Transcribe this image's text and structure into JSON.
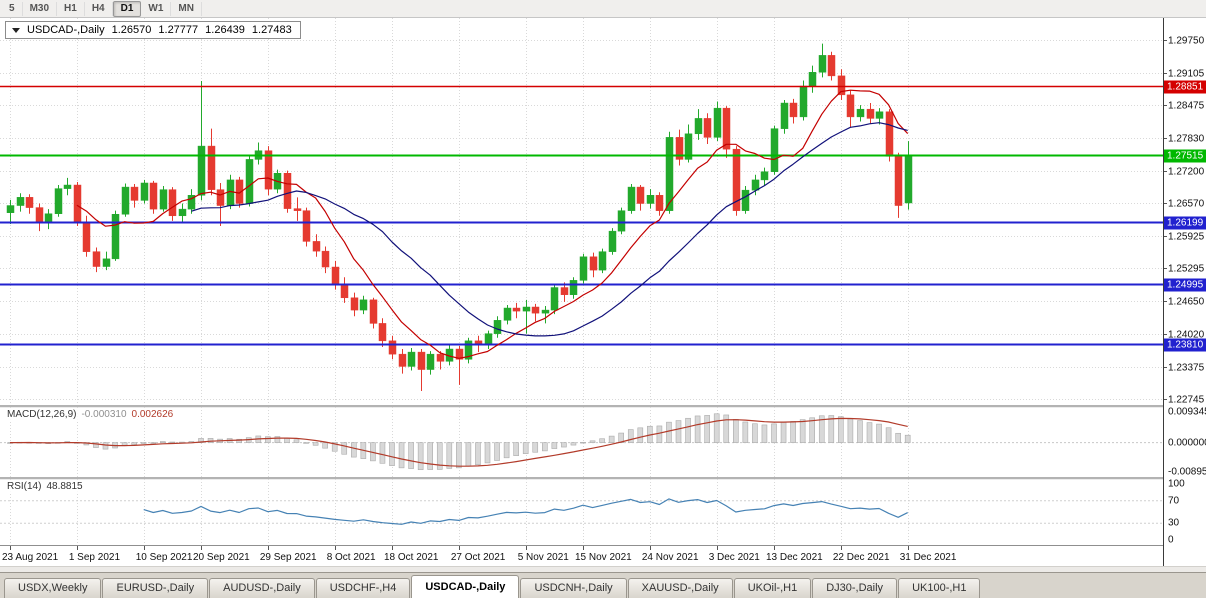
{
  "toolbar": {
    "periods": [
      "5",
      "M30",
      "H1",
      "H4",
      "D1",
      "W1",
      "MN"
    ],
    "active_period": "D1"
  },
  "chart": {
    "symbol": "USDCAD-,Daily",
    "ohlc": {
      "open": "1.26570",
      "high": "1.27777",
      "low": "1.26439",
      "close": "1.27483"
    }
  },
  "indicators": {
    "macd": {
      "name": "MACD(12,26,9)",
      "value_macd": "-0.000310",
      "value_signal": "0.002626",
      "axis": [
        "0.0093450",
        "0.0000000",
        "-0.0089500"
      ]
    },
    "rsi": {
      "name": "RSI(14)",
      "value": "48.8815",
      "axis": [
        "100",
        "70",
        "30",
        "0"
      ]
    }
  },
  "tabs": {
    "active_index": 4,
    "items": [
      {
        "label": "USDX,Weekly"
      },
      {
        "label": "EURUSD-,Daily"
      },
      {
        "label": "AUDUSD-,Daily"
      },
      {
        "label": "USDCHF-,H4"
      },
      {
        "label": "USDCAD-,Daily"
      },
      {
        "label": "USDCNH-,Daily"
      },
      {
        "label": "XAUUSD-,Daily"
      },
      {
        "label": "UKOil-,H1"
      },
      {
        "label": "DJ30-,Daily"
      },
      {
        "label": "UK100-,H1"
      }
    ]
  },
  "chart_data": {
    "type": "candlestick",
    "symbol": "USDCAD-",
    "timeframe": "Daily",
    "colors": {
      "bull": "#22a92c",
      "bear": "#e53a30",
      "ma_fast": "#c40000",
      "ma_slow": "#11117a",
      "macd_histogram": "#d8d8d8",
      "macd_signal": "#b23b2a",
      "rsi": "#4682b4",
      "grid": "#d9d9d9"
    },
    "price_ticks": [
      "1.29750",
      "1.29105",
      "1.28475",
      "1.27830",
      "1.27200",
      "1.26570",
      "1.25925",
      "1.25295",
      "1.24650",
      "1.24020",
      "1.23375",
      "1.22745"
    ],
    "levels": [
      {
        "price": "1.28851",
        "color": "#d40000",
        "width": 1.5
      },
      {
        "price": "1.27515",
        "color": "#00b800",
        "width": 2
      },
      {
        "price": "1.26199",
        "color": "#2121cf",
        "width": 2
      },
      {
        "price": "1.24995",
        "color": "#2121cf",
        "width": 2
      },
      {
        "price": "1.23810",
        "color": "#2121cf",
        "width": 2
      }
    ],
    "x_ticks": [
      {
        "i": 0,
        "label": "23 Aug 2021"
      },
      {
        "i": 7,
        "label": "1 Sep 2021"
      },
      {
        "i": 14,
        "label": "10 Sep 2021"
      },
      {
        "i": 20,
        "label": "20 Sep 2021"
      },
      {
        "i": 27,
        "label": "29 Sep 2021"
      },
      {
        "i": 34,
        "label": "8 Oct 2021"
      },
      {
        "i": 40,
        "label": "18 Oct 2021"
      },
      {
        "i": 47,
        "label": "27 Oct 2021"
      },
      {
        "i": 54,
        "label": "5 Nov 2021"
      },
      {
        "i": 60,
        "label": "15 Nov 2021"
      },
      {
        "i": 67,
        "label": "24 Nov 2021"
      },
      {
        "i": 74,
        "label": "3 Dec 2021"
      },
      {
        "i": 80,
        "label": "13 Dec 2021"
      },
      {
        "i": 87,
        "label": "22 Dec 2021"
      },
      {
        "i": 94,
        "label": "31 Dec 2021"
      }
    ],
    "ma": {
      "fast": {
        "period": 8
      },
      "slow": {
        "period": 20
      }
    },
    "macd_params": {
      "fast": 12,
      "slow": 26,
      "signal": 9
    },
    "rsi_params": {
      "period": 14
    },
    "candles": [
      [
        1.2638,
        1.2663,
        1.2616,
        1.2652
      ],
      [
        1.2652,
        1.2676,
        1.264,
        1.2668
      ],
      [
        1.2668,
        1.2674,
        1.2636,
        1.2648
      ],
      [
        1.2648,
        1.2656,
        1.2602,
        1.2618
      ],
      [
        1.2618,
        1.2645,
        1.2606,
        1.2636
      ],
      [
        1.2636,
        1.2692,
        1.263,
        1.2685
      ],
      [
        1.2685,
        1.2706,
        1.2672,
        1.2692
      ],
      [
        1.2692,
        1.2698,
        1.2612,
        1.262
      ],
      [
        1.262,
        1.2632,
        1.2552,
        1.2562
      ],
      [
        1.2562,
        1.257,
        1.2522,
        1.2533
      ],
      [
        1.2533,
        1.2562,
        1.2526,
        1.2548
      ],
      [
        1.2548,
        1.2642,
        1.2544,
        1.2635
      ],
      [
        1.2635,
        1.2695,
        1.263,
        1.2688
      ],
      [
        1.2688,
        1.2694,
        1.2648,
        1.2662
      ],
      [
        1.2662,
        1.2702,
        1.2656,
        1.2696
      ],
      [
        1.2696,
        1.27,
        1.2636,
        1.2645
      ],
      [
        1.2645,
        1.269,
        1.264,
        1.2683
      ],
      [
        1.2683,
        1.2688,
        1.2622,
        1.2632
      ],
      [
        1.2632,
        1.2656,
        1.2618,
        1.2645
      ],
      [
        1.2645,
        1.2684,
        1.2636,
        1.2672
      ],
      [
        1.2672,
        1.2895,
        1.2662,
        1.2768
      ],
      [
        1.2768,
        1.2802,
        1.2672,
        1.2683
      ],
      [
        1.2683,
        1.2696,
        1.2612,
        1.2652
      ],
      [
        1.2652,
        1.2712,
        1.2645,
        1.2702
      ],
      [
        1.2702,
        1.2708,
        1.2648,
        1.2656
      ],
      [
        1.2656,
        1.2748,
        1.265,
        1.2742
      ],
      [
        1.2742,
        1.2775,
        1.2732,
        1.2759
      ],
      [
        1.2759,
        1.2768,
        1.2672,
        1.2684
      ],
      [
        1.2684,
        1.2722,
        1.2676,
        1.2715
      ],
      [
        1.2715,
        1.272,
        1.2638,
        1.2646
      ],
      [
        1.2646,
        1.2668,
        1.2622,
        1.2642
      ],
      [
        1.2642,
        1.2648,
        1.2572,
        1.2582
      ],
      [
        1.2582,
        1.2596,
        1.2552,
        1.2563
      ],
      [
        1.2563,
        1.2572,
        1.252,
        1.2532
      ],
      [
        1.2532,
        1.2544,
        1.2488,
        1.2498
      ],
      [
        1.2498,
        1.2512,
        1.2462,
        1.2472
      ],
      [
        1.2472,
        1.2482,
        1.2436,
        1.2448
      ],
      [
        1.2448,
        1.2476,
        1.244,
        1.2468
      ],
      [
        1.2468,
        1.2472,
        1.2412,
        1.2422
      ],
      [
        1.2422,
        1.2432,
        1.2376,
        1.2388
      ],
      [
        1.2388,
        1.2398,
        1.2352,
        1.2362
      ],
      [
        1.2362,
        1.2372,
        1.2324,
        1.2338
      ],
      [
        1.2338,
        1.2374,
        1.233,
        1.2366
      ],
      [
        1.2366,
        1.2372,
        1.229,
        1.2332
      ],
      [
        1.2332,
        1.2368,
        1.2322,
        1.2362
      ],
      [
        1.2362,
        1.2368,
        1.2332,
        1.2348
      ],
      [
        1.2348,
        1.238,
        1.234,
        1.2372
      ],
      [
        1.2372,
        1.2378,
        1.2302,
        1.2352
      ],
      [
        1.2352,
        1.2394,
        1.2344,
        1.2388
      ],
      [
        1.2388,
        1.2398,
        1.2366,
        1.2382
      ],
      [
        1.2382,
        1.2408,
        1.2372,
        1.2402
      ],
      [
        1.2402,
        1.2436,
        1.2394,
        1.2428
      ],
      [
        1.2428,
        1.2458,
        1.242,
        1.2452
      ],
      [
        1.2452,
        1.2462,
        1.2432,
        1.2446
      ],
      [
        1.2446,
        1.2468,
        1.2402,
        1.2454
      ],
      [
        1.2454,
        1.246,
        1.2426,
        1.2442
      ],
      [
        1.2442,
        1.2456,
        1.2422,
        1.2448
      ],
      [
        1.2448,
        1.2498,
        1.244,
        1.2492
      ],
      [
        1.2492,
        1.2502,
        1.2464,
        1.2478
      ],
      [
        1.2478,
        1.2512,
        1.247,
        1.2506
      ],
      [
        1.2506,
        1.2558,
        1.25,
        1.2552
      ],
      [
        1.2552,
        1.256,
        1.2512,
        1.2526
      ],
      [
        1.2526,
        1.2568,
        1.252,
        1.2562
      ],
      [
        1.2562,
        1.2608,
        1.2556,
        1.2602
      ],
      [
        1.2602,
        1.2648,
        1.2596,
        1.2642
      ],
      [
        1.2642,
        1.2694,
        1.2636,
        1.2688
      ],
      [
        1.2688,
        1.2692,
        1.2642,
        1.2656
      ],
      [
        1.2656,
        1.2684,
        1.2646,
        1.2672
      ],
      [
        1.2672,
        1.2678,
        1.2632,
        1.2642
      ],
      [
        1.2642,
        1.2796,
        1.2636,
        1.2785
      ],
      [
        1.2785,
        1.28,
        1.273,
        1.2742
      ],
      [
        1.2742,
        1.281,
        1.2736,
        1.2792
      ],
      [
        1.2792,
        1.284,
        1.278,
        1.2822
      ],
      [
        1.2822,
        1.2832,
        1.2772,
        1.2785
      ],
      [
        1.2785,
        1.2855,
        1.2778,
        1.2842
      ],
      [
        1.2842,
        1.2846,
        1.2745,
        1.2762
      ],
      [
        1.2762,
        1.2768,
        1.2632,
        1.2642
      ],
      [
        1.2642,
        1.269,
        1.2636,
        1.2682
      ],
      [
        1.2682,
        1.2712,
        1.2672,
        1.2702
      ],
      [
        1.2702,
        1.2726,
        1.269,
        1.2718
      ],
      [
        1.2718,
        1.2808,
        1.2712,
        1.2802
      ],
      [
        1.2802,
        1.2858,
        1.2792,
        1.2852
      ],
      [
        1.2852,
        1.286,
        1.2812,
        1.2825
      ],
      [
        1.2825,
        1.2896,
        1.2818,
        1.2885
      ],
      [
        1.2885,
        1.2925,
        1.2872,
        1.2912
      ],
      [
        1.2912,
        1.2968,
        1.2902,
        1.2945
      ],
      [
        1.2945,
        1.2952,
        1.2896,
        1.2905
      ],
      [
        1.2905,
        1.2918,
        1.2858,
        1.2868
      ],
      [
        1.2868,
        1.2876,
        1.2805,
        1.2825
      ],
      [
        1.2825,
        1.2848,
        1.2816,
        1.284
      ],
      [
        1.284,
        1.2852,
        1.2812,
        1.2822
      ],
      [
        1.2822,
        1.2842,
        1.281,
        1.2835
      ],
      [
        1.2835,
        1.284,
        1.2738,
        1.2748
      ],
      [
        1.2748,
        1.2755,
        1.2628,
        1.2652
      ],
      [
        1.2657,
        1.27777,
        1.26439,
        1.27483
      ]
    ]
  }
}
